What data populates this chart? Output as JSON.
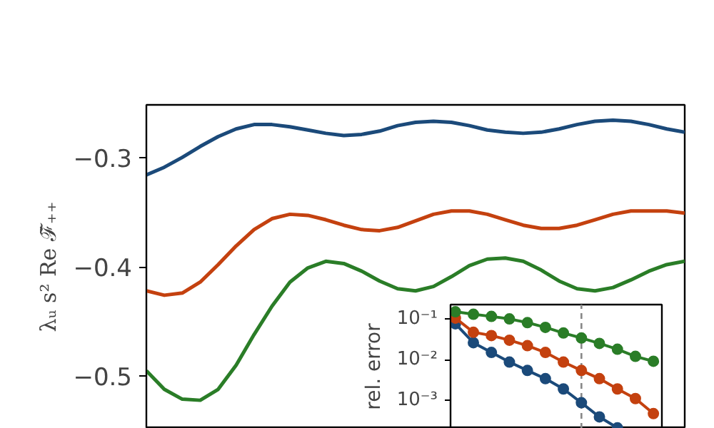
{
  "chart_data": [
    {
      "type": "line",
      "ylabel": "λᵤ s² Re ℱ̃₊₊",
      "categories": [
        null,
        null,
        null,
        null,
        null,
        null,
        null,
        null,
        null,
        null,
        null,
        null,
        null,
        null,
        null,
        null,
        null,
        null,
        null,
        null,
        null,
        null,
        null,
        null,
        null,
        null,
        null,
        null,
        null,
        null,
        null
      ],
      "ylim": [
        -0.548,
        -0.252
      ],
      "yticks": [
        -0.3,
        -0.4,
        -0.5
      ],
      "tick_labels": "y",
      "series": [
        {
          "color": "#1b4a7a",
          "values": [
            -0.316,
            -0.309,
            -0.3,
            -0.29,
            -0.281,
            -0.274,
            -0.27,
            -0.27,
            -0.272,
            -0.275,
            -0.278,
            -0.28,
            -0.279,
            -0.276,
            -0.271,
            -0.268,
            -0.267,
            -0.268,
            -0.271,
            -0.275,
            -0.277,
            -0.278,
            -0.277,
            -0.274,
            -0.27,
            -0.267,
            -0.266,
            -0.267,
            -0.27,
            -0.274,
            -0.277
          ]
        },
        {
          "color": "#c4410f",
          "values": [
            -0.422,
            -0.426,
            -0.424,
            -0.414,
            -0.398,
            -0.381,
            -0.366,
            -0.356,
            -0.352,
            -0.353,
            -0.357,
            -0.362,
            -0.366,
            -0.367,
            -0.364,
            -0.358,
            -0.352,
            -0.349,
            -0.349,
            -0.352,
            -0.357,
            -0.362,
            -0.365,
            -0.365,
            -0.362,
            -0.357,
            -0.352,
            -0.349,
            -0.349,
            -0.349,
            -0.351
          ]
        },
        {
          "color": "#2a7d27",
          "values": [
            -0.495,
            -0.512,
            -0.521,
            -0.522,
            -0.512,
            -0.49,
            -0.462,
            -0.436,
            -0.414,
            -0.401,
            -0.395,
            -0.397,
            -0.404,
            -0.413,
            -0.42,
            -0.422,
            -0.418,
            -0.409,
            -0.399,
            -0.393,
            -0.392,
            -0.395,
            -0.403,
            -0.413,
            -0.42,
            -0.422,
            -0.419,
            -0.412,
            -0.404,
            -0.398,
            -0.395
          ]
        }
      ]
    },
    {
      "type": "line",
      "ylabel": "rel. error",
      "categories": [
        null,
        null,
        null,
        null,
        null,
        null,
        null,
        null,
        null,
        null,
        null,
        null
      ],
      "log": "y",
      "marker": "circle",
      "tick_labels": "y",
      "ylim": [
        0.0002,
        0.225
      ],
      "yticks": [
        {
          "value": 0.1,
          "label": "10⁻¹"
        },
        {
          "value": 0.01,
          "label": "10⁻²"
        },
        {
          "value": 0.001,
          "label": "10⁻³"
        }
      ],
      "series": [
        {
          "color": "#1b4a7a",
          "values": [
            0.076,
            0.026,
            0.015,
            0.0087,
            0.0054,
            0.0034,
            0.0019,
            0.00087,
            0.00039,
            0.00021,
            null,
            null
          ]
        },
        {
          "color": "#c4410f",
          "values": [
            0.105,
            0.047,
            0.039,
            0.03,
            0.022,
            0.015,
            0.0087,
            0.0054,
            0.0034,
            0.0019,
            0.0011,
            0.00047
          ]
        },
        {
          "color": "#2a7d27",
          "values": [
            0.15,
            0.13,
            0.115,
            0.1,
            0.081,
            0.062,
            0.045,
            0.034,
            0.025,
            0.018,
            0.012,
            0.0091
          ]
        }
      ]
    }
  ]
}
